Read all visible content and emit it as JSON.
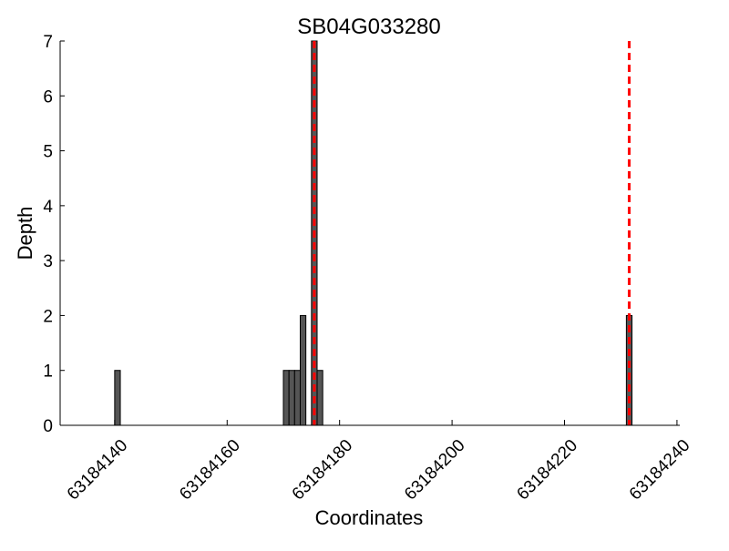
{
  "chart_data": {
    "type": "bar",
    "title": "SB04G033280",
    "xlabel": "Coordinates",
    "ylabel": "Depth",
    "xlim": [
      63184130.3,
      63184240.5
    ],
    "ylim": [
      0,
      7
    ],
    "xticks": [
      63184140,
      63184160,
      63184180,
      63184200,
      63184220,
      63184240
    ],
    "yticks": [
      0,
      1,
      2,
      3,
      4,
      5,
      6,
      7
    ],
    "bin_width": 1,
    "bins": [
      {
        "x": 63184140,
        "depth": 1
      },
      {
        "x": 63184170,
        "depth": 1
      },
      {
        "x": 63184171,
        "depth": 1
      },
      {
        "x": 63184172,
        "depth": 1
      },
      {
        "x": 63184173,
        "depth": 2
      },
      {
        "x": 63184175,
        "depth": 7
      },
      {
        "x": 63184176,
        "depth": 1
      },
      {
        "x": 63184231,
        "depth": 2
      }
    ],
    "vlines": [
      63184175.5,
      63184231.5
    ],
    "bar_color": "#555555",
    "bar_edge_color": "#000000",
    "vline_color": "#ff0000",
    "vline_style": "dashed",
    "grid": false
  }
}
